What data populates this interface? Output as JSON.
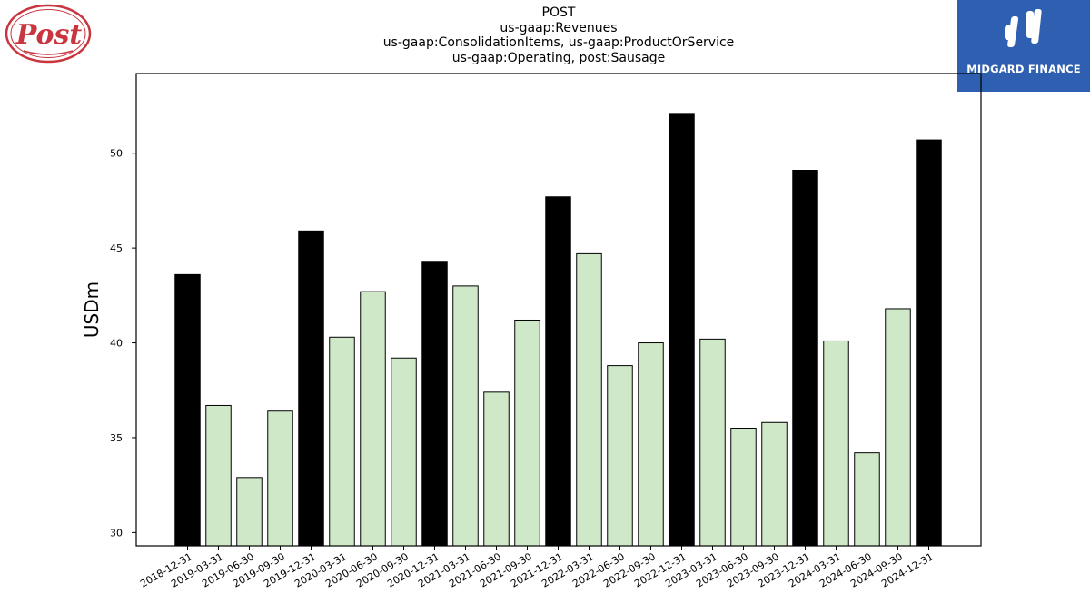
{
  "chart_data": {
    "type": "bar",
    "title_lines": [
      "POST",
      "us-gaap:Revenues",
      "us-gaap:ConsolidationItems, us-gaap:ProductOrService",
      "us-gaap:Operating, post:Sausage"
    ],
    "ylabel": "USDm",
    "xlabel": "",
    "ylim": [
      29.3,
      54.2
    ],
    "yticks": [
      30,
      35,
      40,
      45,
      50
    ],
    "categories": [
      "2018-12-31",
      "2019-03-31",
      "2019-06-30",
      "2019-09-30",
      "2019-12-31",
      "2020-03-31",
      "2020-06-30",
      "2020-09-30",
      "2020-12-31",
      "2021-03-31",
      "2021-06-30",
      "2021-09-30",
      "2021-12-31",
      "2022-03-31",
      "2022-06-30",
      "2022-09-30",
      "2022-12-31",
      "2023-03-31",
      "2023-06-30",
      "2023-09-30",
      "2023-12-31",
      "2024-03-31",
      "2024-06-30",
      "2024-09-30",
      "2024-12-31"
    ],
    "values": [
      43.6,
      36.7,
      32.9,
      36.4,
      45.9,
      40.3,
      42.7,
      39.2,
      44.3,
      43.0,
      37.4,
      41.2,
      47.7,
      44.7,
      38.8,
      40.0,
      52.1,
      40.2,
      35.5,
      35.8,
      49.1,
      40.1,
      34.2,
      41.8,
      50.7
    ],
    "annual_flags": [
      true,
      false,
      false,
      false,
      true,
      false,
      false,
      false,
      true,
      false,
      false,
      false,
      true,
      false,
      false,
      false,
      true,
      false,
      false,
      false,
      true,
      false,
      false,
      false,
      true
    ],
    "colors": {
      "annual": "#000000",
      "quarterly": "#cfe9c8",
      "edge": "#000000"
    },
    "grid": false,
    "legend": "none"
  },
  "logos": {
    "left_text": "Post",
    "right_text": "MIDGARD FINANCE",
    "right_bg": "#2f5fb0",
    "left_color": "#c9363f"
  }
}
